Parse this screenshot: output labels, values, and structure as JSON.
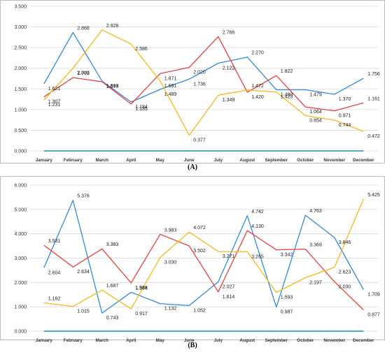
{
  "colors": {
    "blue": "#2E8BE0",
    "red": "#E8413C",
    "gold": "#F4B91A",
    "teal": "#0E9AB0",
    "grid": "#d9d9d9"
  },
  "chart_data": [
    {
      "panel_label": "(A)",
      "type": "line",
      "categories": [
        "January",
        "February",
        "March",
        "April",
        "May",
        "June",
        "July",
        "August",
        "September",
        "October",
        "November",
        "December"
      ],
      "ylim": [
        0,
        3.5
      ],
      "yticks": [
        "0.000",
        "0.500",
        "1.000",
        "1.500",
        "2.000",
        "2.500",
        "3.000",
        "3.500"
      ],
      "grid": true,
      "series": [
        {
          "color": "blue",
          "values": [
            1.621,
            2.868,
            1.689,
            1.184,
            1.489,
            1.736,
            2.122,
            2.27,
            1.48,
            1.479,
            1.37,
            1.756
          ],
          "labels": [
            "1.621",
            "2.868",
            "1.689",
            "1.184",
            "1.489",
            "1.736",
            "2.122",
            "2.270",
            "1.480",
            "1.479",
            "1.370",
            "1.756"
          ]
        },
        {
          "color": "red",
          "values": [
            1.307,
            1.773,
            1.674,
            1.135,
            1.871,
            2.02,
            2.766,
            1.42,
            1.822,
            1.064,
            0.971,
            1.161
          ],
          "labels": [
            "1.307",
            "1.773",
            "1.674",
            "1.135",
            "1.871",
            "2.020",
            "2.766",
            "1.420",
            "1.822",
            "1.064",
            "0.971",
            "1.161"
          ]
        },
        {
          "color": "gold",
          "values": [
            1.231,
            2.0,
            2.928,
            2.586,
            1.691,
            0.377,
            1.349,
            1.472,
            1.425,
            0.854,
            0.744,
            0.472
          ],
          "labels": [
            "1.231",
            "2.000",
            "2.928",
            "2.586",
            "1.691",
            "0.377",
            "1.349",
            "1.472",
            "1.425",
            "0.854",
            "0.744",
            "0.472"
          ]
        },
        {
          "color": "teal",
          "values": [
            0,
            0,
            0,
            0,
            0,
            0,
            0,
            0,
            0,
            0,
            0,
            0
          ],
          "labels": []
        }
      ]
    },
    {
      "panel_label": "(B)",
      "type": "line",
      "categories": [
        "January",
        "February",
        "March",
        "April",
        "May",
        "June",
        "July",
        "August",
        "September",
        "October",
        "November",
        "December"
      ],
      "ylim": [
        0,
        6.0
      ],
      "yticks": [
        "0.000",
        "1.000",
        "2.000",
        "3.000",
        "4.000",
        "5.000",
        "6.000"
      ],
      "grid": true,
      "series": [
        {
          "color": "blue",
          "values": [
            2.604,
            5.376,
            0.743,
            1.598,
            1.132,
            1.052,
            2.027,
            4.742,
            0.987,
            4.763,
            3.846,
            1.709
          ],
          "labels": [
            "2.604",
            "5.376",
            "0.743",
            "1.598",
            "1.132",
            "1.052",
            "2.027",
            "4.742",
            "0.987",
            "4.763",
            "3.846",
            "1.709"
          ]
        },
        {
          "color": "red",
          "values": [
            3.531,
            2.634,
            3.383,
            1.984,
            3.983,
            3.502,
            1.614,
            4.13,
            3.342,
            3.369,
            2.03,
            0.877
          ],
          "labels": [
            "3.531",
            "2.634",
            "3.383",
            "1.984",
            "3.983",
            "3.502",
            "1.614",
            "4.130",
            "3.342",
            "3.369",
            "2.030",
            "0.877"
          ]
        },
        {
          "color": "gold",
          "values": [
            1.162,
            1.015,
            1.687,
            0.917,
            3.03,
            4.072,
            3.271,
            3.265,
            1.593,
            2.197,
            2.623,
            5.425
          ],
          "labels": [
            "1.162",
            "1.015",
            "1.687",
            "0.917",
            "3.030",
            "4.072",
            "3.271",
            "3.265",
            "1.593",
            "2.197",
            "2.623",
            "5.425"
          ]
        },
        {
          "color": "teal",
          "values": [
            0,
            0,
            0,
            0,
            0,
            0,
            0,
            0,
            0,
            0,
            0,
            0
          ],
          "labels": []
        }
      ]
    }
  ]
}
